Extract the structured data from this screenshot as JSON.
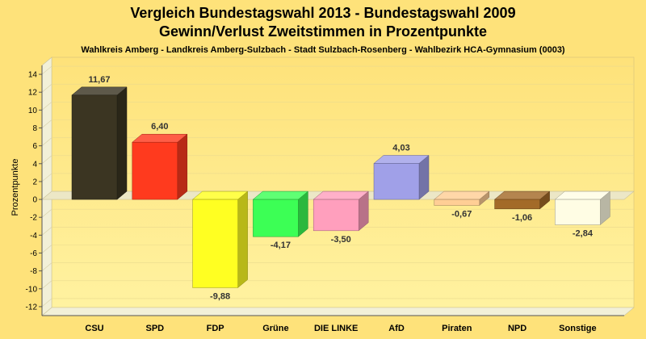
{
  "chart_data": {
    "type": "bar",
    "title_line1": "Vergleich Bundestagswahl 2013 - Bundestagswahl 2009",
    "title_line2": "Gewinn/Verlust Zweitstimmen in Prozentpunkte",
    "subtitle": "Wahlkreis Amberg - Landkreis Amberg-Sulzbach - Stadt Sulzbach-Rosenberg - Wahlbezirk HCA-Gymnasium (0003)",
    "ylabel": "Prozentpunkte",
    "xlabel": "",
    "ylim": [
      -13,
      15
    ],
    "yticks": [
      14,
      12,
      10,
      8,
      6,
      4,
      2,
      0,
      -2,
      -4,
      -6,
      -8,
      -10,
      -12
    ],
    "categories": [
      "CSU",
      "SPD",
      "FDP",
      "Grüne",
      "DIE LINKE",
      "AfD",
      "Piraten",
      "NPD",
      "Sonstige"
    ],
    "values": [
      11.67,
      6.4,
      -9.88,
      -4.17,
      -3.5,
      4.03,
      -0.67,
      -1.06,
      -2.84
    ],
    "value_labels": [
      "11,67",
      "6,40",
      "-9,88",
      "-4,17",
      "-3,50",
      "4,03",
      "-0,67",
      "-1,06",
      "-2,84"
    ],
    "colors": [
      "#3b3522",
      "#ff3a1e",
      "#ffff22",
      "#3cff55",
      "#ff9fbd",
      "#a0a0e8",
      "#ffce95",
      "#a36a28",
      "#fffde4"
    ],
    "grid": true,
    "legend": "none",
    "background": "#fee27a"
  }
}
